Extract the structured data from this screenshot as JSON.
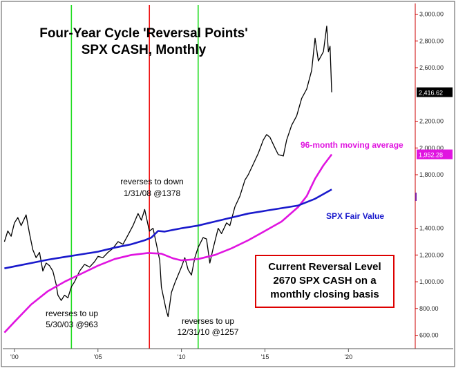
{
  "chart_data": {
    "type": "line",
    "title": "Four-Year Cycle 'Reversal Points'",
    "subtitle": "SPX CASH, Monthly",
    "xlabel": "",
    "ylabel": "",
    "xlim": [
      1999.3,
      2024.0
    ],
    "ylim": [
      500,
      3080
    ],
    "grid": false,
    "y_ticks": [
      {
        "value": 3000,
        "label": "3,000.00"
      },
      {
        "value": 2800,
        "label": "2,800.00"
      },
      {
        "value": 2600,
        "label": "2,600.00"
      },
      {
        "value": 2200,
        "label": "2,200.00"
      },
      {
        "value": 2000,
        "label": "2,000.00"
      },
      {
        "value": 1800,
        "label": "1,800.00"
      },
      {
        "value": 1400,
        "label": "1,400.00"
      },
      {
        "value": 1200,
        "label": "1,200.00"
      },
      {
        "value": 1000,
        "label": "1,000.00"
      },
      {
        "value": 800,
        "label": "800.00"
      },
      {
        "value": 600,
        "label": "600.00"
      }
    ],
    "x_ticks": [
      {
        "value": 2000,
        "label": "'00"
      },
      {
        "value": 2005,
        "label": "'05"
      },
      {
        "value": 2010,
        "label": "'10"
      },
      {
        "value": 2015,
        "label": "'15"
      },
      {
        "value": 2020,
        "label": "'20"
      }
    ],
    "series": [
      {
        "name": "SPX CASH",
        "color": "#000000",
        "points": [
          [
            1999.4,
            1300
          ],
          [
            1999.6,
            1380
          ],
          [
            1999.8,
            1340
          ],
          [
            2000.0,
            1440
          ],
          [
            2000.2,
            1480
          ],
          [
            2000.4,
            1420
          ],
          [
            2000.7,
            1500
          ],
          [
            2000.9,
            1360
          ],
          [
            2001.1,
            1240
          ],
          [
            2001.3,
            1180
          ],
          [
            2001.5,
            1220
          ],
          [
            2001.7,
            1080
          ],
          [
            2001.9,
            1140
          ],
          [
            2002.1,
            1120
          ],
          [
            2002.3,
            1080
          ],
          [
            2002.5,
            980
          ],
          [
            2002.6,
            900
          ],
          [
            2002.8,
            860
          ],
          [
            2003.0,
            900
          ],
          [
            2003.2,
            880
          ],
          [
            2003.41,
            963
          ],
          [
            2003.6,
            1000
          ],
          [
            2003.9,
            1080
          ],
          [
            2004.2,
            1130
          ],
          [
            2004.5,
            1110
          ],
          [
            2004.8,
            1150
          ],
          [
            2005.0,
            1190
          ],
          [
            2005.3,
            1180
          ],
          [
            2005.6,
            1220
          ],
          [
            2005.9,
            1250
          ],
          [
            2006.2,
            1300
          ],
          [
            2006.5,
            1280
          ],
          [
            2006.8,
            1350
          ],
          [
            2007.1,
            1420
          ],
          [
            2007.4,
            1510
          ],
          [
            2007.6,
            1460
          ],
          [
            2007.8,
            1540
          ],
          [
            2008.08,
            1378
          ],
          [
            2008.3,
            1400
          ],
          [
            2008.5,
            1280
          ],
          [
            2008.7,
            1160
          ],
          [
            2008.8,
            960
          ],
          [
            2008.9,
            900
          ],
          [
            2009.1,
            780
          ],
          [
            2009.2,
            740
          ],
          [
            2009.4,
            920
          ],
          [
            2009.6,
            990
          ],
          [
            2009.8,
            1050
          ],
          [
            2010.0,
            1110
          ],
          [
            2010.2,
            1180
          ],
          [
            2010.4,
            1090
          ],
          [
            2010.6,
            1050
          ],
          [
            2010.8,
            1180
          ],
          [
            2011.0,
            1257
          ],
          [
            2011.3,
            1330
          ],
          [
            2011.5,
            1320
          ],
          [
            2011.7,
            1140
          ],
          [
            2011.9,
            1250
          ],
          [
            2012.2,
            1400
          ],
          [
            2012.4,
            1360
          ],
          [
            2012.7,
            1440
          ],
          [
            2012.9,
            1420
          ],
          [
            2013.2,
            1560
          ],
          [
            2013.5,
            1640
          ],
          [
            2013.8,
            1760
          ],
          [
            2014.0,
            1800
          ],
          [
            2014.3,
            1880
          ],
          [
            2014.6,
            1960
          ],
          [
            2014.9,
            2060
          ],
          [
            2015.1,
            2100
          ],
          [
            2015.3,
            2080
          ],
          [
            2015.6,
            2000
          ],
          [
            2015.8,
            1950
          ],
          [
            2016.1,
            1940
          ],
          [
            2016.3,
            2060
          ],
          [
            2016.6,
            2170
          ],
          [
            2016.9,
            2240
          ],
          [
            2017.2,
            2370
          ],
          [
            2017.5,
            2440
          ],
          [
            2017.8,
            2580
          ],
          [
            2018.0,
            2820
          ],
          [
            2018.2,
            2650
          ],
          [
            2018.5,
            2720
          ],
          [
            2018.7,
            2910
          ],
          [
            2018.8,
            2720
          ],
          [
            2018.9,
            2760
          ],
          [
            2019.0,
            2416.62
          ]
        ]
      },
      {
        "name": "96-month moving average",
        "color": "#e014e0",
        "points": [
          [
            1999.4,
            620
          ],
          [
            2000.0,
            700
          ],
          [
            2001.0,
            830
          ],
          [
            2002.0,
            930
          ],
          [
            2003.0,
            1000
          ],
          [
            2004.0,
            1060
          ],
          [
            2005.0,
            1120
          ],
          [
            2006.0,
            1170
          ],
          [
            2007.0,
            1200
          ],
          [
            2008.0,
            1215
          ],
          [
            2008.8,
            1210
          ],
          [
            2009.5,
            1175
          ],
          [
            2010.0,
            1160
          ],
          [
            2011.0,
            1170
          ],
          [
            2012.0,
            1200
          ],
          [
            2013.0,
            1250
          ],
          [
            2014.0,
            1310
          ],
          [
            2015.0,
            1380
          ],
          [
            2016.0,
            1450
          ],
          [
            2017.0,
            1560
          ],
          [
            2017.5,
            1640
          ],
          [
            2018.0,
            1770
          ],
          [
            2018.5,
            1870
          ],
          [
            2019.0,
            1952.28
          ]
        ]
      },
      {
        "name": "SPX Fair Value",
        "color": "#1a1acc",
        "points": [
          [
            1999.4,
            1100
          ],
          [
            2000.0,
            1115
          ],
          [
            2001.0,
            1140
          ],
          [
            2002.0,
            1165
          ],
          [
            2003.0,
            1185
          ],
          [
            2004.0,
            1205
          ],
          [
            2005.0,
            1225
          ],
          [
            2006.0,
            1255
          ],
          [
            2007.0,
            1280
          ],
          [
            2007.8,
            1310
          ],
          [
            2008.2,
            1330
          ],
          [
            2008.6,
            1380
          ],
          [
            2009.0,
            1375
          ],
          [
            2010.0,
            1400
          ],
          [
            2011.0,
            1420
          ],
          [
            2012.0,
            1450
          ],
          [
            2013.0,
            1480
          ],
          [
            2014.0,
            1510
          ],
          [
            2015.0,
            1530
          ],
          [
            2016.0,
            1550
          ],
          [
            2017.0,
            1570
          ],
          [
            2018.0,
            1620
          ],
          [
            2019.0,
            1690
          ]
        ]
      }
    ],
    "reversal_lines": [
      {
        "x": 2003.41,
        "color": "#22dd22"
      },
      {
        "x": 2008.08,
        "color": "#ee1111"
      },
      {
        "x": 2011.0,
        "color": "#22dd22"
      }
    ],
    "value_flags": [
      {
        "value": 2416.62,
        "label": "2,416.62",
        "bg": "#000000",
        "fg": "#ffffff"
      },
      {
        "value": 1952.28,
        "label": "1,952.28",
        "bg": "#e014e0",
        "fg": "#ffffff"
      }
    ],
    "annotations": {
      "down_line1": "reverses to down",
      "down_line2": "1/31/08 @1378",
      "up1_line1": "reverses to up",
      "up1_line2": "5/30/03 @963",
      "up2_line1": "reverses to up",
      "up2_line2": "12/31/10 @1257",
      "ma_label": "96-month moving average",
      "fair_label": "SPX Fair Value"
    },
    "reversal_box": {
      "line1": "Current Reversal Level",
      "line2": "2670 SPX CASH on a",
      "line3": "monthly closing basis",
      "border_color": "#dd0000"
    },
    "axis_color": "#cc0000"
  }
}
